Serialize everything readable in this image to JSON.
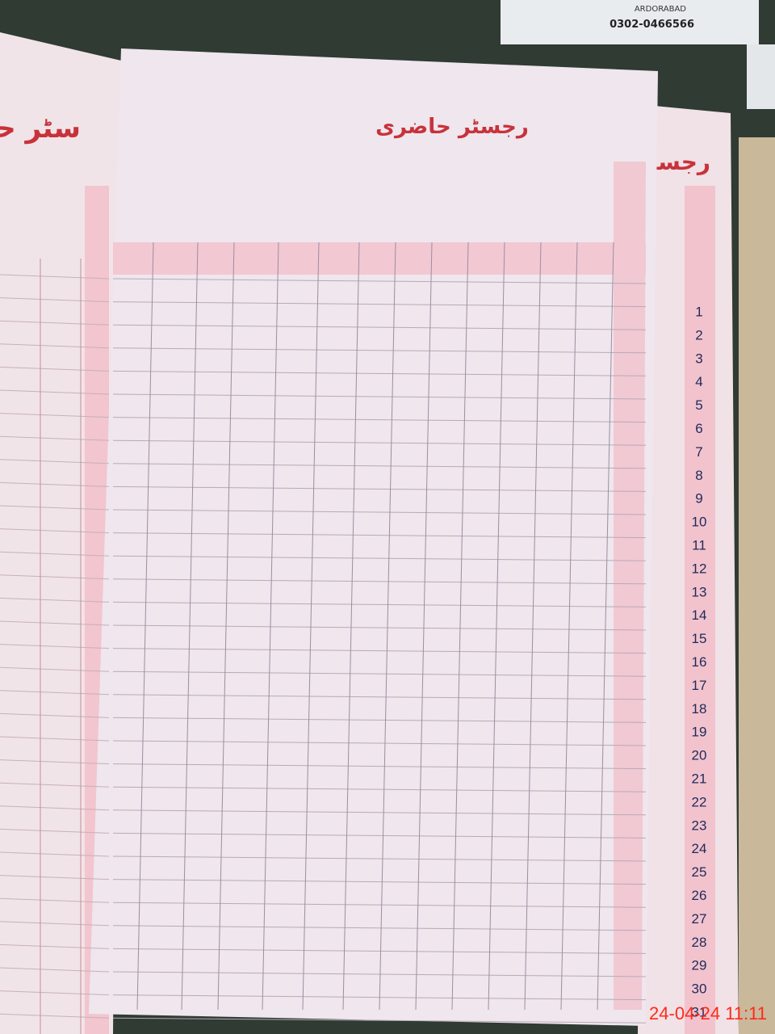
{
  "photo": {
    "card_phone": "0302-0466566",
    "card_place": "ARDORABAD",
    "left_page_title": "سٹر حاضری",
    "center_page_title": "رجسٹر حاضری",
    "right_page_title": "رجسٹر حا",
    "row_numbers": [
      1,
      2,
      3,
      4,
      5,
      6,
      7,
      8,
      9,
      10,
      11,
      12,
      13,
      14,
      15,
      16,
      17,
      18,
      19,
      20,
      21,
      22,
      23,
      24,
      25,
      26,
      27,
      28,
      29,
      30,
      31
    ],
    "timestamp": "24-04-24  11:11"
  }
}
